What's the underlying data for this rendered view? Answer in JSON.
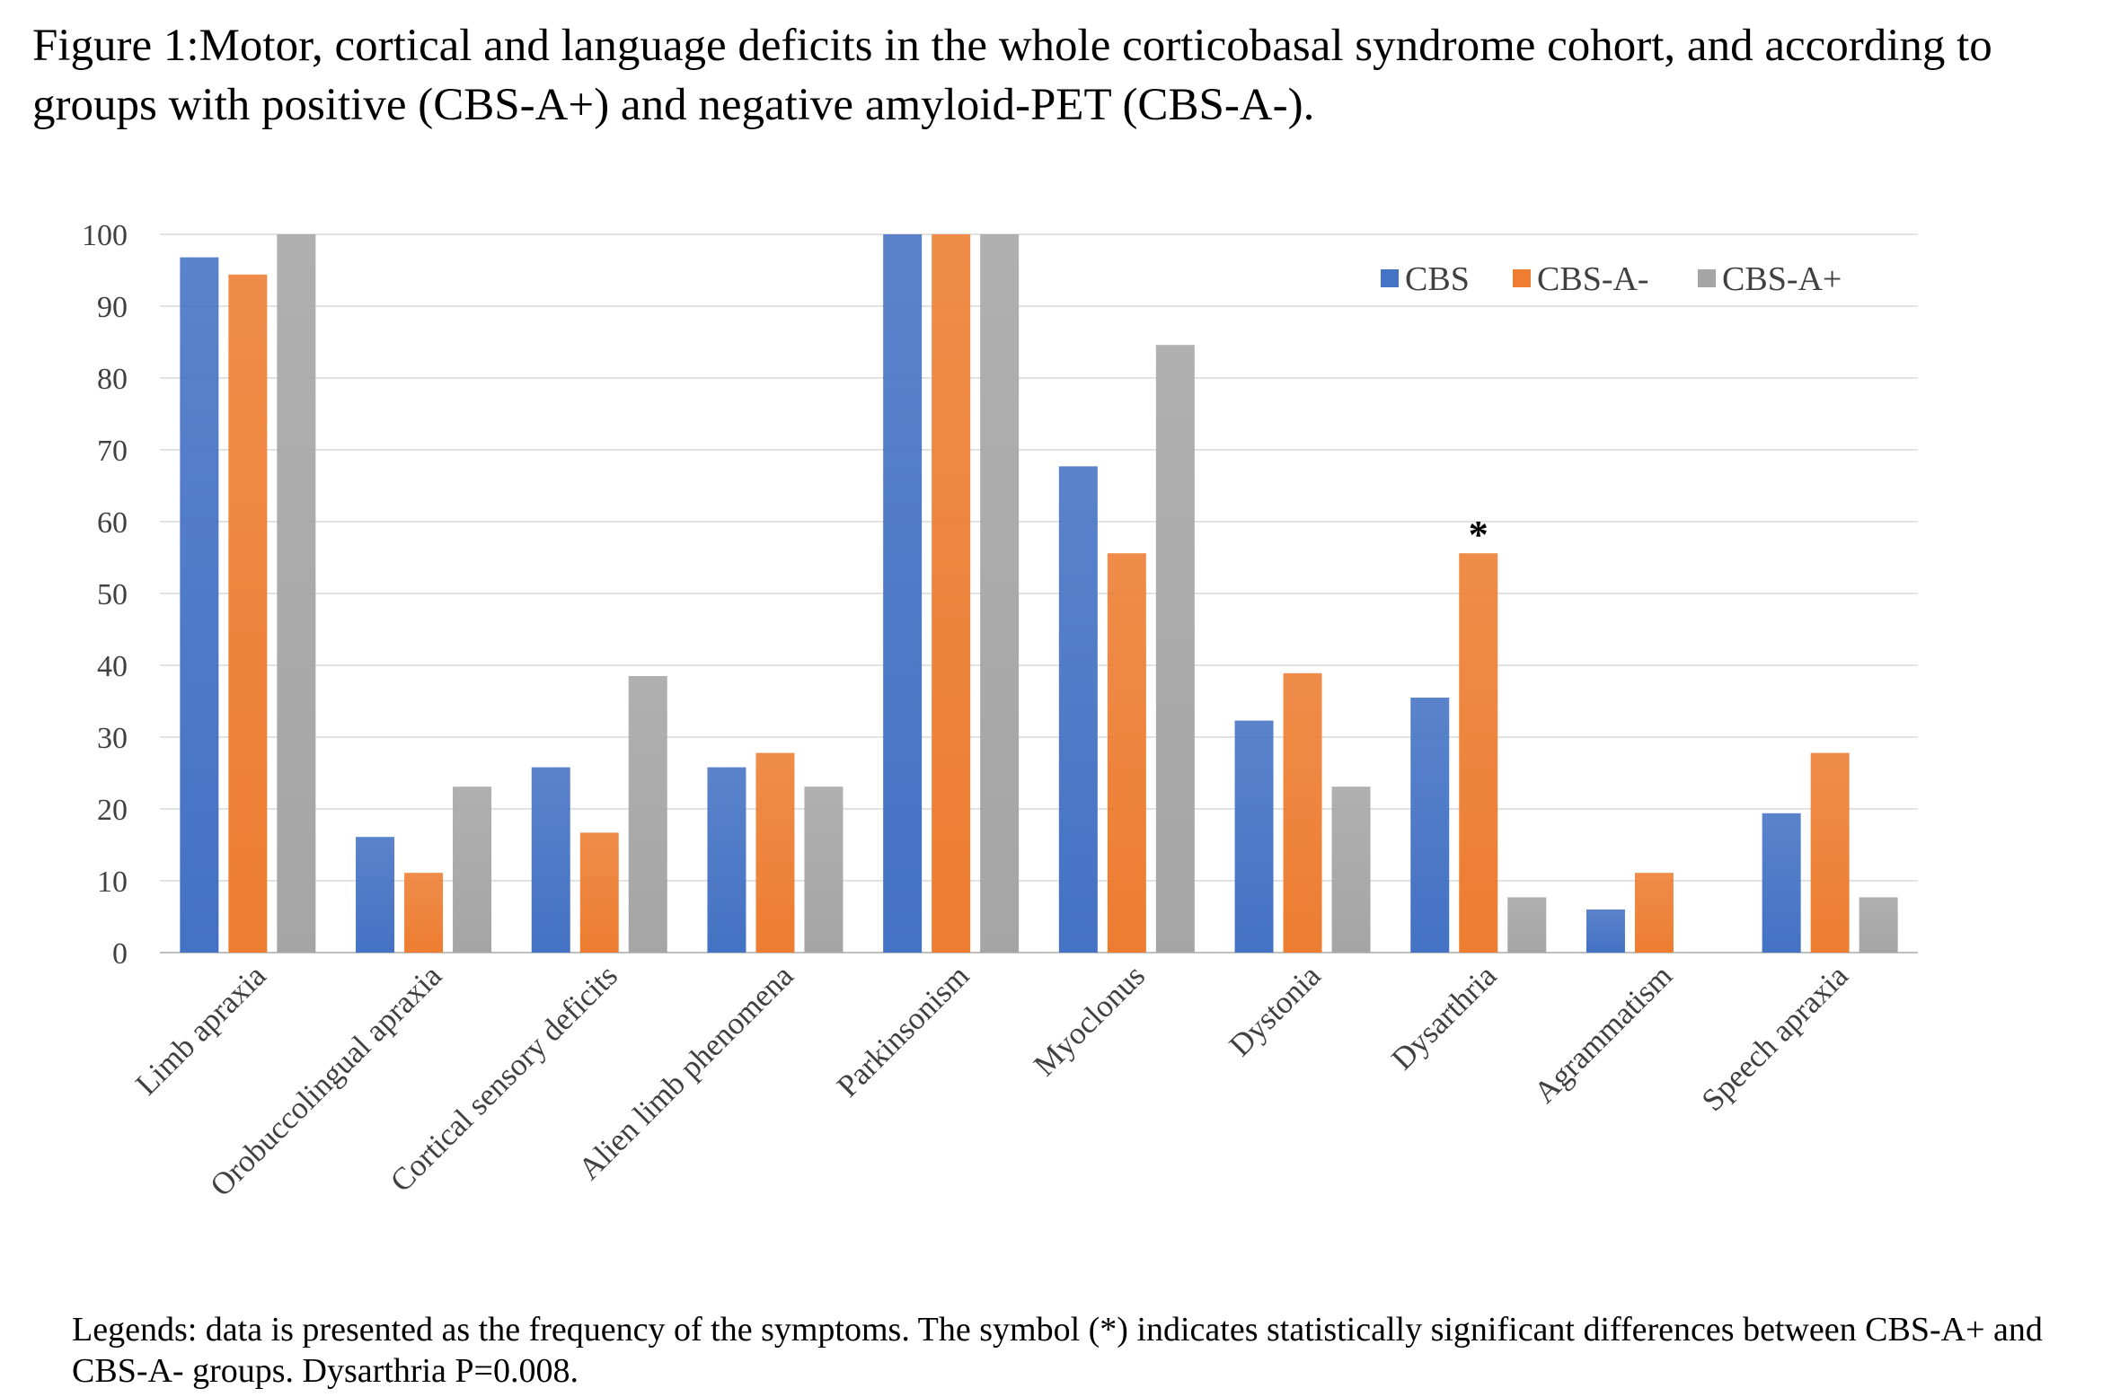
{
  "figure": {
    "caption": "Figure 1:Motor, cortical and language deficits in the whole corticobasal syndrome cohort, and according to groups with positive (CBS-A+)  and negative amyloid-PET (CBS-A-).",
    "legends_text": "Legends: data is presented as the frequency of the symptoms. The symbol (*) indicates statistically significant differences between CBS-A+ and CBS-A- groups. Dysarthria P=0.008."
  },
  "chart_data": {
    "type": "bar",
    "title": "",
    "xlabel": "",
    "ylabel": "",
    "ylim": [
      0,
      100
    ],
    "yticks": [
      0,
      10,
      20,
      30,
      40,
      50,
      60,
      70,
      80,
      90,
      100
    ],
    "grid": true,
    "legend_position": "top-right",
    "categories": [
      "Limb apraxia",
      "Orobuccolingual apraxia",
      "Cortical sensory deficits",
      "Alien limb phenomena",
      "Parkinsonism",
      "Myoclonus",
      "Dystonia",
      "Dysarthria",
      "Agrammatism",
      "Speech apraxia"
    ],
    "series": [
      {
        "name": "CBS",
        "color": "#4472C4",
        "values": [
          96.8,
          16.1,
          25.8,
          25.8,
          100,
          67.7,
          32.3,
          35.5,
          6.0,
          19.4
        ]
      },
      {
        "name": "CBS-A-",
        "color": "#ED7D31",
        "values": [
          94.4,
          11.1,
          16.7,
          27.8,
          100,
          55.6,
          38.9,
          55.6,
          11.1,
          27.8
        ]
      },
      {
        "name": "CBS-A+",
        "color": "#A5A5A5",
        "values": [
          100,
          23.1,
          38.5,
          23.1,
          100,
          84.6,
          23.1,
          7.7,
          0,
          7.7
        ]
      }
    ],
    "annotations": [
      {
        "category": "Dysarthria",
        "series": "CBS-A-",
        "text": "*"
      }
    ]
  }
}
